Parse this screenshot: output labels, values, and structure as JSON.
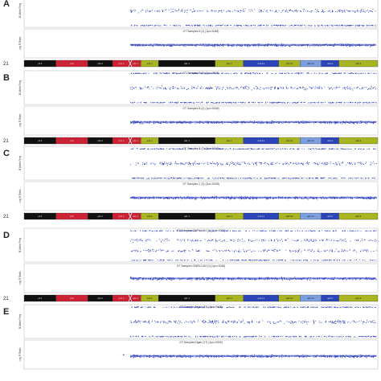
{
  "colors": {
    "points": "#3344bb",
    "baf_band": "#3a4fc8",
    "panel_border": "#bfbfbf",
    "ideo_outline": "#333333",
    "bands": {
      "red": "#cc2233",
      "black": "#111111",
      "olive": "#a8b420",
      "blue": "#2b44b8",
      "lightblue": "#7c9fe0"
    }
  },
  "chromosome": {
    "label": "21",
    "bands": [
      {
        "name": "p13",
        "color": "black",
        "end": 0.09
      },
      {
        "name": "p12",
        "color": "red",
        "end": 0.18
      },
      {
        "name": "p11.2",
        "color": "black",
        "end": 0.25
      },
      {
        "name": "p11.1",
        "color": "red",
        "end": 0.3
      },
      {
        "name": "q11.1",
        "color": "red",
        "end": 0.33
      },
      {
        "name": "q11.2",
        "color": "olive",
        "end": 0.38
      },
      {
        "name": "q21.1",
        "color": "black",
        "end": 0.54
      },
      {
        "name": "q21.3",
        "color": "olive",
        "end": 0.62
      },
      {
        "name": "q22.11",
        "color": "blue",
        "end": 0.72
      },
      {
        "name": "q22.12",
        "color": "olive",
        "end": 0.78
      },
      {
        "name": "q22.13",
        "color": "lightblue",
        "end": 0.84
      },
      {
        "name": "q22.2",
        "color": "blue",
        "end": 0.89
      },
      {
        "name": "q22.3",
        "color": "olive",
        "end": 1.0
      }
    ]
  },
  "chart_data": [
    {
      "type": "scatter",
      "panel": "A",
      "title": "GT Samples A (1) (1px=0048)",
      "baf_ylabel": "B Allele Freq",
      "lrr_ylabel": "Log R Ratio",
      "baf_pattern": "normal",
      "lrr_outlier": null,
      "baf_ylim": [
        0,
        1
      ],
      "lrr_ylim": [
        -2,
        2
      ]
    },
    {
      "type": "scatter",
      "panel": "B",
      "title": "GT Samples B (2) (1px=0048)",
      "baf_ylabel": "B Allele Freq",
      "lrr_ylabel": "Log R Ratio",
      "baf_pattern": "normal",
      "lrr_outlier": null,
      "baf_ylim": [
        0,
        1
      ],
      "lrr_ylim": [
        -2,
        2
      ]
    },
    {
      "type": "scatter",
      "panel": "C",
      "title": "GT Samples C (3) (1px=0048)",
      "baf_ylabel": "B Allele Freq",
      "lrr_ylabel": "Log R Ratio",
      "baf_pattern": "normal",
      "lrr_outlier": null,
      "baf_ylim": [
        0,
        1
      ],
      "lrr_ylim": [
        -2,
        2
      ]
    },
    {
      "type": "scatter",
      "panel": "D",
      "title": "GT Samples GWFb1-M4 (1) (1px=0048)",
      "baf_ylabel": "B Allele Freq",
      "lrr_ylabel": "Log R Ratio",
      "baf_pattern": "trisomy",
      "lrr_outlier": 0.3,
      "baf_ylim": [
        0,
        1
      ],
      "lrr_ylim": [
        -2,
        2
      ]
    },
    {
      "type": "scatter",
      "panel": "E",
      "title": "GT Samples Ngan (1T) (1px=0048)",
      "baf_ylabel": "B Allele Freq",
      "lrr_ylabel": "Log R Ratio",
      "baf_pattern": "normal",
      "lrr_outlier": 0.28,
      "baf_ylim": [
        0,
        1
      ],
      "lrr_ylim": [
        -2,
        2
      ]
    }
  ]
}
